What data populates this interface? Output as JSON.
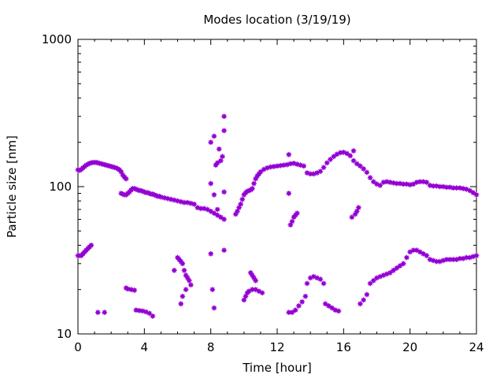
{
  "chart_data": {
    "type": "scatter",
    "title": "Modes location (3/19/19)",
    "xlabel": "Time [hour]",
    "ylabel": "Particle size [nm]",
    "xlim": [
      0,
      24
    ],
    "ylim": [
      10,
      1000
    ],
    "yscale": "log",
    "xticks": [
      0,
      4,
      8,
      12,
      16,
      20,
      24
    ],
    "xtick_labels": [
      "0",
      "4",
      "8",
      "12",
      "16",
      "20",
      "24"
    ],
    "yticks": [
      10,
      100,
      1000
    ],
    "ytick_labels": [
      "10",
      "100",
      "1000"
    ],
    "grid": false,
    "legend": "none",
    "marker_color": "#9400d3",
    "series": [
      {
        "values": [
          [
            0.0,
            130
          ],
          [
            0.1,
            129
          ],
          [
            0.2,
            131
          ],
          [
            0.3,
            134
          ],
          [
            0.4,
            137
          ],
          [
            0.5,
            140
          ],
          [
            0.6,
            142
          ],
          [
            0.7,
            144
          ],
          [
            0.8,
            145
          ],
          [
            0.9,
            146
          ],
          [
            1.0,
            146
          ],
          [
            1.1,
            146
          ],
          [
            1.2,
            145
          ],
          [
            1.3,
            144
          ],
          [
            1.4,
            143
          ],
          [
            1.5,
            142
          ],
          [
            1.6,
            141
          ],
          [
            1.7,
            140
          ],
          [
            1.8,
            139
          ],
          [
            1.9,
            138
          ],
          [
            2.0,
            137
          ],
          [
            2.1,
            136
          ],
          [
            2.2,
            135
          ],
          [
            2.3,
            134
          ],
          [
            2.4,
            132
          ],
          [
            2.5,
            130
          ],
          [
            2.6,
            126
          ],
          [
            2.7,
            120
          ],
          [
            2.8,
            116
          ],
          [
            2.9,
            113
          ],
          [
            2.6,
            90
          ],
          [
            2.7,
            89
          ],
          [
            2.8,
            88
          ],
          [
            2.9,
            88
          ],
          [
            3.0,
            90
          ],
          [
            3.1,
            92
          ],
          [
            3.2,
            95
          ],
          [
            3.3,
            97
          ],
          [
            3.4,
            97
          ],
          [
            3.5,
            96
          ],
          [
            3.6,
            95
          ],
          [
            3.7,
            94
          ],
          [
            3.8,
            94
          ],
          [
            3.9,
            93
          ],
          [
            4.0,
            92
          ],
          [
            4.1,
            91
          ],
          [
            4.2,
            91
          ],
          [
            4.3,
            90
          ],
          [
            4.4,
            89
          ],
          [
            4.5,
            89
          ],
          [
            4.6,
            88
          ],
          [
            4.7,
            87
          ],
          [
            4.8,
            86
          ],
          [
            4.9,
            86
          ],
          [
            5.0,
            85
          ],
          [
            5.2,
            84
          ],
          [
            5.4,
            83
          ],
          [
            5.6,
            82
          ],
          [
            5.8,
            81
          ],
          [
            6.0,
            80
          ],
          [
            6.2,
            79
          ],
          [
            6.4,
            78
          ],
          [
            6.6,
            78
          ],
          [
            6.8,
            77
          ],
          [
            7.0,
            76
          ],
          [
            7.2,
            72
          ],
          [
            7.4,
            71
          ],
          [
            7.6,
            71
          ],
          [
            7.8,
            70
          ],
          [
            8.0,
            68
          ],
          [
            8.2,
            66
          ],
          [
            8.4,
            64
          ],
          [
            8.6,
            62
          ],
          [
            8.8,
            60
          ],
          [
            9.5,
            65
          ],
          [
            9.6,
            68
          ],
          [
            9.7,
            72
          ],
          [
            9.8,
            76
          ],
          [
            9.9,
            82
          ],
          [
            10.0,
            88
          ],
          [
            10.1,
            91
          ],
          [
            10.2,
            93
          ],
          [
            10.3,
            94
          ],
          [
            10.4,
            95
          ],
          [
            10.5,
            97
          ],
          [
            10.6,
            105
          ],
          [
            10.7,
            113
          ],
          [
            10.8,
            118
          ],
          [
            10.9,
            122
          ],
          [
            11.0,
            126
          ],
          [
            11.2,
            131
          ],
          [
            11.4,
            134
          ],
          [
            11.6,
            136
          ],
          [
            11.8,
            137
          ],
          [
            12.0,
            138
          ],
          [
            12.2,
            139
          ],
          [
            12.4,
            140
          ],
          [
            12.6,
            141
          ],
          [
            12.8,
            143
          ],
          [
            13.0,
            144
          ],
          [
            13.2,
            142
          ],
          [
            13.4,
            140
          ],
          [
            13.6,
            138
          ],
          [
            13.8,
            124
          ],
          [
            14.0,
            122
          ],
          [
            14.2,
            122
          ],
          [
            14.4,
            124
          ],
          [
            14.6,
            127
          ],
          [
            14.8,
            135
          ],
          [
            15.0,
            145
          ],
          [
            15.2,
            153
          ],
          [
            15.4,
            160
          ],
          [
            15.6,
            166
          ],
          [
            15.8,
            170
          ],
          [
            16.0,
            171
          ],
          [
            16.2,
            168
          ],
          [
            16.4,
            162
          ],
          [
            16.6,
            150
          ],
          [
            16.8,
            143
          ],
          [
            17.0,
            138
          ],
          [
            17.2,
            132
          ],
          [
            17.4,
            125
          ],
          [
            17.6,
            115
          ],
          [
            17.8,
            108
          ],
          [
            18.0,
            104
          ],
          [
            18.2,
            102
          ],
          [
            18.4,
            107
          ],
          [
            18.6,
            108
          ],
          [
            18.8,
            107
          ],
          [
            19.0,
            106
          ],
          [
            19.2,
            105
          ],
          [
            19.4,
            105
          ],
          [
            19.6,
            104
          ],
          [
            19.8,
            104
          ],
          [
            20.0,
            103
          ],
          [
            20.2,
            104
          ],
          [
            20.4,
            107
          ],
          [
            20.6,
            108
          ],
          [
            20.8,
            108
          ],
          [
            21.0,
            107
          ],
          [
            21.2,
            102
          ],
          [
            21.4,
            101
          ],
          [
            21.6,
            101
          ],
          [
            21.8,
            100
          ],
          [
            22.0,
            100
          ],
          [
            22.2,
            99
          ],
          [
            22.4,
            99
          ],
          [
            22.6,
            98
          ],
          [
            22.8,
            98
          ],
          [
            23.0,
            98
          ],
          [
            23.2,
            97
          ],
          [
            23.4,
            96
          ],
          [
            23.6,
            94
          ],
          [
            23.8,
            91
          ],
          [
            24.0,
            88
          ],
          [
            0.0,
            34
          ],
          [
            0.1,
            34
          ],
          [
            0.2,
            34
          ],
          [
            0.3,
            35
          ],
          [
            0.4,
            36
          ],
          [
            0.5,
            37
          ],
          [
            0.6,
            38
          ],
          [
            0.7,
            39
          ],
          [
            0.8,
            40
          ],
          [
            1.2,
            14
          ],
          [
            1.6,
            14
          ],
          [
            2.9,
            20.5
          ],
          [
            3.0,
            20.2
          ],
          [
            3.2,
            20
          ],
          [
            3.4,
            19.8
          ],
          [
            3.5,
            14.5
          ],
          [
            3.7,
            14.4
          ],
          [
            3.9,
            14.3
          ],
          [
            4.1,
            14.1
          ],
          [
            4.3,
            13.8
          ],
          [
            4.5,
            13.2
          ],
          [
            5.8,
            27
          ],
          [
            6.0,
            33
          ],
          [
            6.1,
            32
          ],
          [
            6.2,
            31
          ],
          [
            6.3,
            30
          ],
          [
            6.4,
            27
          ],
          [
            6.5,
            25
          ],
          [
            6.6,
            24
          ],
          [
            6.7,
            23
          ],
          [
            6.8,
            21.5
          ],
          [
            6.2,
            16
          ],
          [
            6.3,
            18
          ],
          [
            6.5,
            20
          ],
          [
            8.0,
            35
          ],
          [
            8.1,
            20
          ],
          [
            8.2,
            15
          ],
          [
            8.0,
            200
          ],
          [
            8.2,
            220
          ],
          [
            8.3,
            140
          ],
          [
            8.4,
            145
          ],
          [
            8.5,
            180
          ],
          [
            8.6,
            150
          ],
          [
            8.7,
            160
          ],
          [
            8.8,
            300
          ],
          [
            8.8,
            240
          ],
          [
            8.8,
            92
          ],
          [
            8.8,
            37
          ],
          [
            8.0,
            105
          ],
          [
            8.2,
            88
          ],
          [
            8.4,
            70
          ],
          [
            10.0,
            17
          ],
          [
            10.1,
            18
          ],
          [
            10.2,
            19
          ],
          [
            10.3,
            19.5
          ],
          [
            10.5,
            20
          ],
          [
            10.7,
            20
          ],
          [
            10.9,
            19.5
          ],
          [
            11.1,
            19
          ],
          [
            10.4,
            26
          ],
          [
            10.5,
            25
          ],
          [
            10.6,
            24
          ],
          [
            10.7,
            23
          ],
          [
            12.7,
            14
          ],
          [
            12.9,
            14
          ],
          [
            13.1,
            14.5
          ],
          [
            13.3,
            15.5
          ],
          [
            13.5,
            16.5
          ],
          [
            13.7,
            18
          ],
          [
            13.8,
            22
          ],
          [
            14.0,
            24
          ],
          [
            14.2,
            24.5
          ],
          [
            14.4,
            24
          ],
          [
            14.6,
            23.5
          ],
          [
            14.8,
            22
          ],
          [
            14.9,
            16
          ],
          [
            15.1,
            15.5
          ],
          [
            15.3,
            15
          ],
          [
            15.5,
            14.5
          ],
          [
            15.7,
            14.3
          ],
          [
            12.8,
            55
          ],
          [
            12.9,
            58
          ],
          [
            13.0,
            62
          ],
          [
            13.1,
            64
          ],
          [
            13.2,
            66
          ],
          [
            12.7,
            90
          ],
          [
            12.7,
            165
          ],
          [
            16.5,
            62
          ],
          [
            16.7,
            65
          ],
          [
            16.8,
            68
          ],
          [
            16.9,
            72
          ],
          [
            16.6,
            175
          ],
          [
            17.0,
            16
          ],
          [
            17.2,
            17
          ],
          [
            17.4,
            18.5
          ],
          [
            17.6,
            22
          ],
          [
            17.8,
            23
          ],
          [
            18.0,
            24
          ],
          [
            18.2,
            24.5
          ],
          [
            18.4,
            25
          ],
          [
            18.6,
            25.5
          ],
          [
            18.8,
            26
          ],
          [
            19.0,
            27
          ],
          [
            19.2,
            28
          ],
          [
            19.4,
            29
          ],
          [
            19.6,
            30
          ],
          [
            19.8,
            33
          ],
          [
            20.0,
            36
          ],
          [
            20.2,
            37
          ],
          [
            20.4,
            37
          ],
          [
            20.6,
            36
          ],
          [
            20.8,
            35
          ],
          [
            21.0,
            34
          ],
          [
            21.2,
            32
          ],
          [
            21.4,
            31.5
          ],
          [
            21.6,
            31
          ],
          [
            21.8,
            31
          ],
          [
            22.0,
            31.5
          ],
          [
            22.2,
            32
          ],
          [
            22.4,
            32
          ],
          [
            22.6,
            32
          ],
          [
            22.8,
            32
          ],
          [
            23.0,
            32.5
          ],
          [
            23.2,
            32.5
          ],
          [
            23.4,
            33
          ],
          [
            23.6,
            33
          ],
          [
            23.8,
            33.5
          ],
          [
            24.0,
            34
          ]
        ]
      }
    ]
  }
}
